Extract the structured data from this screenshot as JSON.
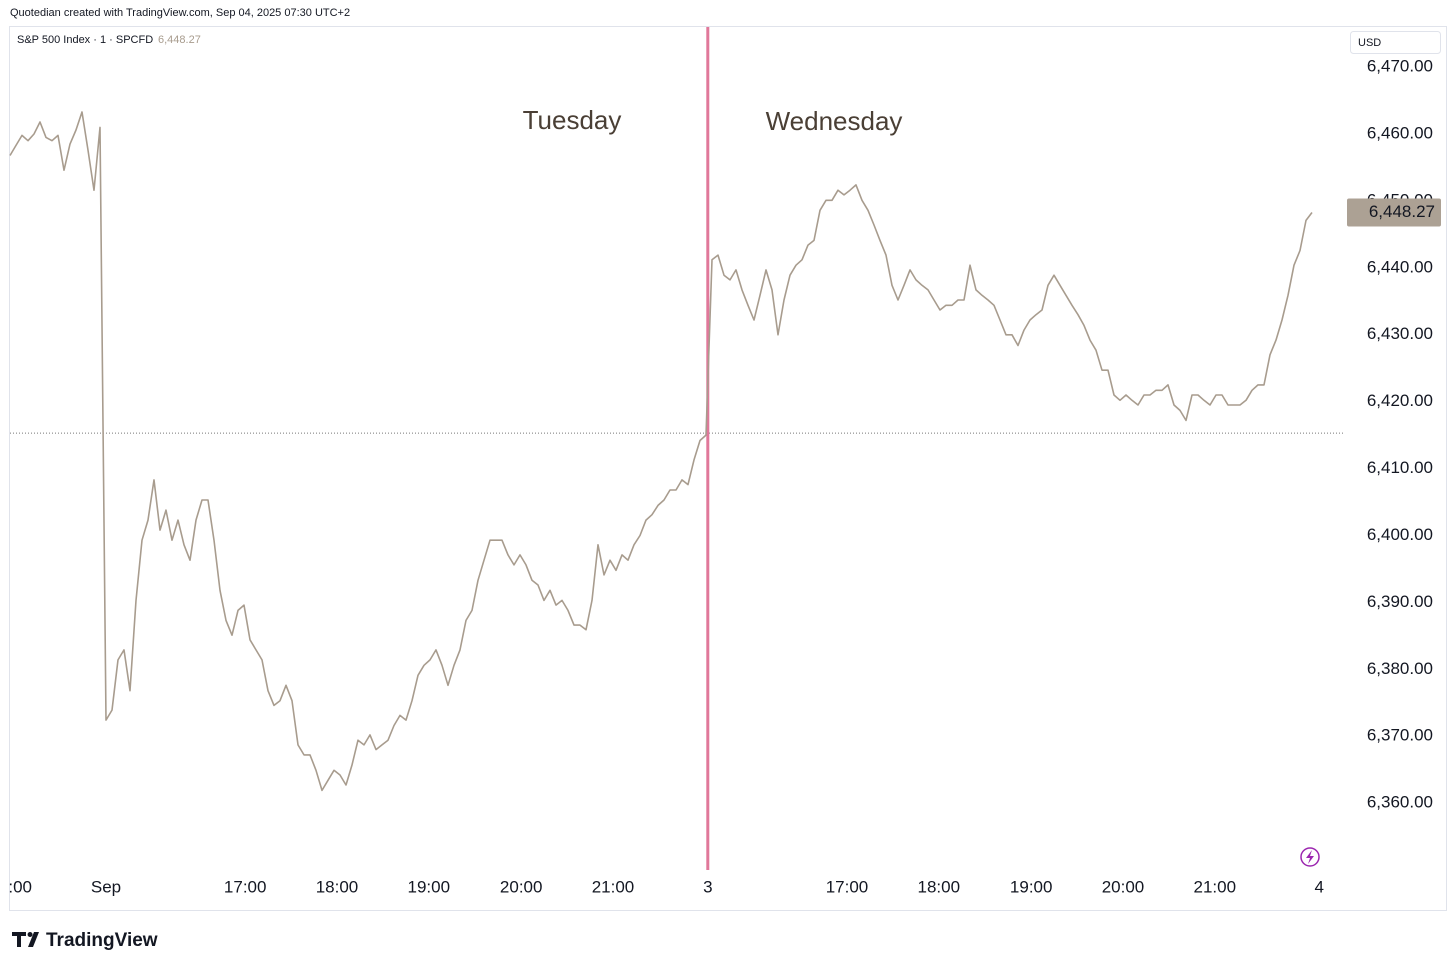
{
  "header": {
    "text": "Quotedian created with TradingView.com, Sep 04, 2025 07:30 UTC+2"
  },
  "currency_button": "USD",
  "footer": {
    "logo": "TradingView"
  },
  "chart_data": {
    "type": "line",
    "annotations": [
      "Tuesday",
      "Wednesday"
    ],
    "series": [
      {
        "name": "S&P 500 Index · 1 · SPCFD",
        "color": "#a89c8e",
        "values": [
          6456.8,
          6458.3,
          6459.8,
          6459.0,
          6460.0,
          6461.8,
          6459.5,
          6459.0,
          6459.8,
          6454.6,
          6458.5,
          6460.6,
          6463.3,
          6457.6,
          6451.6,
          6461.0,
          6372.4,
          6373.9,
          6381.4,
          6382.9,
          6376.8,
          6390.3,
          6399.3,
          6402.3,
          6408.3,
          6400.8,
          6403.8,
          6399.3,
          6402.3,
          6398.6,
          6396.3,
          6402.3,
          6405.3,
          6405.3,
          6399.3,
          6391.8,
          6387.3,
          6385.1,
          6388.8,
          6389.6,
          6384.4,
          6382.9,
          6381.4,
          6376.8,
          6374.6,
          6375.3,
          6377.6,
          6375.3,
          6368.7,
          6367.2,
          6367.2,
          6364.9,
          6361.9,
          6363.4,
          6364.9,
          6364.2,
          6362.7,
          6365.7,
          6369.4,
          6368.7,
          6370.2,
          6368.0,
          6368.7,
          6369.4,
          6371.6,
          6373.1,
          6372.4,
          6375.3,
          6379.1,
          6380.6,
          6381.4,
          6382.9,
          6380.6,
          6377.6,
          6380.6,
          6382.9,
          6387.3,
          6388.8,
          6393.3,
          6396.3,
          6399.3,
          6399.3,
          6399.3,
          6397.1,
          6395.6,
          6397.1,
          6395.6,
          6393.3,
          6392.6,
          6390.3,
          6391.8,
          6389.6,
          6390.3,
          6388.8,
          6386.6,
          6386.6,
          6385.9,
          6390.3,
          6398.6,
          6394.1,
          6396.3,
          6394.8,
          6397.1,
          6396.3,
          6398.6,
          6400.0,
          6402.3,
          6403.1,
          6404.5,
          6405.3,
          6406.8,
          6406.8,
          6408.3,
          6407.6,
          6411.3,
          6414.2,
          6415.0,
          6441.2,
          6441.9,
          6438.9,
          6438.2,
          6439.7,
          6436.7,
          6434.4,
          6432.2,
          6435.9,
          6439.7,
          6436.7,
          6430.0,
          6435.2,
          6438.9,
          6440.4,
          6441.2,
          6443.4,
          6444.1,
          6448.6,
          6450.1,
          6450.1,
          6451.6,
          6450.9,
          6451.6,
          6452.4,
          6450.1,
          6448.6,
          6446.4,
          6444.1,
          6441.9,
          6437.4,
          6435.2,
          6437.4,
          6439.7,
          6438.2,
          6437.4,
          6436.7,
          6435.2,
          6433.7,
          6434.4,
          6434.4,
          6435.2,
          6435.2,
          6440.4,
          6436.7,
          6435.9,
          6435.2,
          6434.4,
          6432.2,
          6430.0,
          6430.0,
          6428.4,
          6430.7,
          6432.2,
          6433.0,
          6433.7,
          6437.4,
          6438.9,
          6437.4,
          6435.9,
          6434.4,
          6433.0,
          6431.4,
          6429.2,
          6427.7,
          6424.7,
          6424.7,
          6421.0,
          6420.2,
          6421.0,
          6420.2,
          6419.5,
          6421.0,
          6421.0,
          6421.7,
          6421.7,
          6422.5,
          6419.5,
          6418.7,
          6417.2,
          6421.0,
          6421.0,
          6420.2,
          6419.5,
          6421.0,
          6421.0,
          6419.5,
          6419.5,
          6419.5,
          6420.2,
          6421.7,
          6422.5,
          6422.5,
          6427.0,
          6429.2,
          6432.2,
          6435.9,
          6440.4,
          6442.6,
          6447.1,
          6448.27
        ]
      }
    ],
    "last_value_label": "6,448.27",
    "last_label_color": "#aca194",
    "reference_line": 6415.3,
    "session_break_x": 116.3,
    "session_break_color": "#e0789a",
    "xlim": [
      0,
      222.5
    ],
    "xticks": [
      {
        "value": 1.7,
        "label": ":00"
      },
      {
        "value": 16,
        "label": "Sep"
      },
      {
        "value": 39.2,
        "label": "17:00"
      },
      {
        "value": 54.5,
        "label": "18:00"
      },
      {
        "value": 69.8,
        "label": "19:00"
      },
      {
        "value": 85.2,
        "label": "20:00"
      },
      {
        "value": 100.5,
        "label": "21:00"
      },
      {
        "value": 116.3,
        "label": "3"
      },
      {
        "value": 139.5,
        "label": "17:00"
      },
      {
        "value": 154.8,
        "label": "18:00"
      },
      {
        "value": 170.2,
        "label": "19:00"
      },
      {
        "value": 185.5,
        "label": "20:00"
      },
      {
        "value": 200.8,
        "label": "21:00"
      },
      {
        "value": 218.2,
        "label": "4"
      }
    ],
    "ylim": [
      6350,
      6476
    ],
    "yticks": [
      {
        "value": 6360,
        "label": "6,360.00"
      },
      {
        "value": 6370,
        "label": "6,370.00"
      },
      {
        "value": 6380,
        "label": "6,380.00"
      },
      {
        "value": 6390,
        "label": "6,390.00"
      },
      {
        "value": 6400,
        "label": "6,400.00"
      },
      {
        "value": 6410,
        "label": "6,410.00"
      },
      {
        "value": 6420,
        "label": "6,420.00"
      },
      {
        "value": 6430,
        "label": "6,430.00"
      },
      {
        "value": 6440,
        "label": "6,440.00"
      },
      {
        "value": 6450,
        "label": "6,450.00"
      },
      {
        "value": 6460,
        "label": "6,460.00"
      },
      {
        "value": 6470,
        "label": "6,470.00"
      }
    ]
  }
}
